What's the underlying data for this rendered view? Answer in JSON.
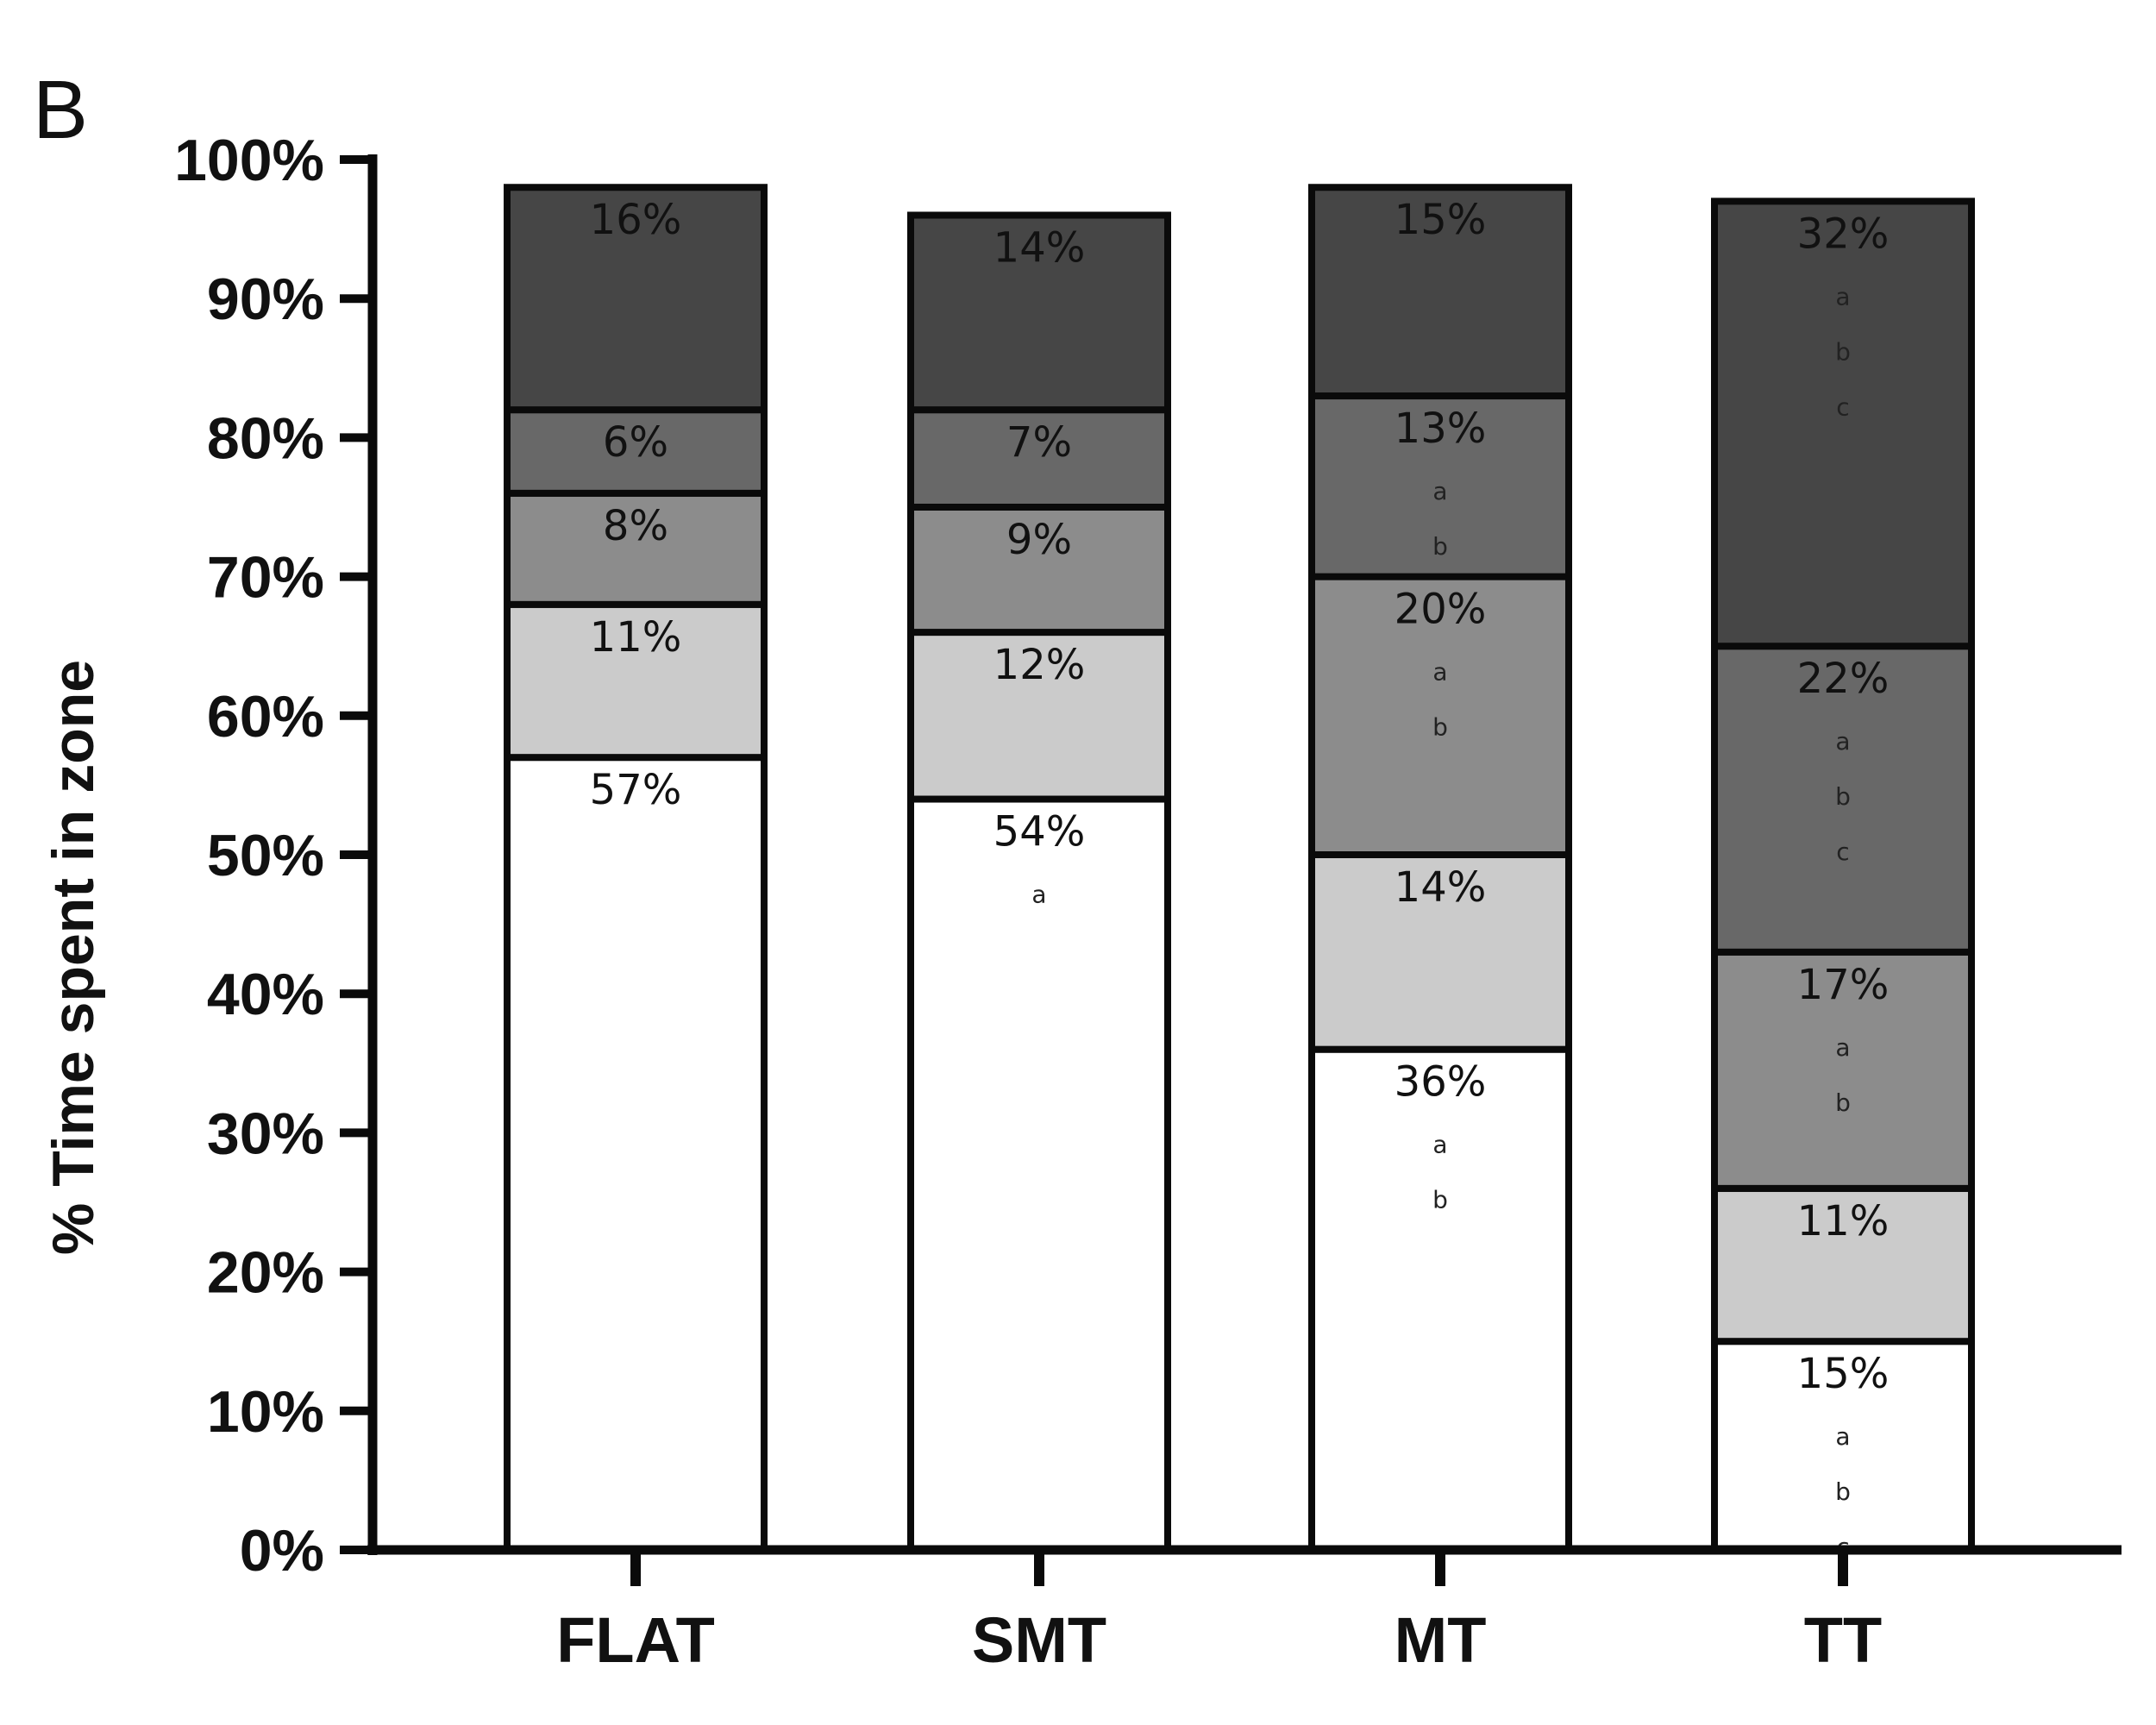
{
  "panel_label": "B",
  "chart_data": {
    "type": "bar",
    "stacked": true,
    "ylabel": "% Time spent in zone",
    "xlabel": "",
    "ylim": [
      0,
      100
    ],
    "y_ticks": [
      "0%",
      "10%",
      "20%",
      "30%",
      "40%",
      "50%",
      "60%",
      "70%",
      "80%",
      "90%",
      "100%"
    ],
    "categories": [
      "FLAT",
      "SMT",
      "MT",
      "TT"
    ],
    "series": [
      {
        "color": "#ffffff",
        "values": [
          57,
          54,
          36,
          15
        ],
        "labels": [
          "57%",
          "54%",
          "36%",
          "15%"
        ],
        "significance": [
          [],
          [
            "a"
          ],
          [
            "a",
            "b"
          ],
          [
            "a",
            "b",
            "c"
          ]
        ]
      },
      {
        "color": "#cbcbcb",
        "values": [
          11,
          12,
          14,
          11
        ],
        "labels": [
          "11%",
          "12%",
          "14%",
          "11%"
        ],
        "significance": [
          [],
          [],
          [],
          []
        ]
      },
      {
        "color": "#8c8c8c",
        "values": [
          8,
          9,
          20,
          17
        ],
        "labels": [
          "8%",
          "9%",
          "20%",
          "17%"
        ],
        "significance": [
          [],
          [],
          [
            "a",
            "b"
          ],
          [
            "a",
            "b"
          ]
        ]
      },
      {
        "color": "#686868",
        "values": [
          6,
          7,
          13,
          22
        ],
        "labels": [
          "6%",
          "7%",
          "13%",
          "22%"
        ],
        "significance": [
          [],
          [],
          [
            "a",
            "b"
          ],
          [
            "a",
            "b",
            "c"
          ]
        ]
      },
      {
        "color": "#464646",
        "values": [
          16,
          14,
          15,
          32
        ],
        "labels": [
          "16%",
          "14%",
          "15%",
          "32%"
        ],
        "significance": [
          [],
          [],
          [],
          [
            "a",
            "b",
            "c"
          ]
        ]
      }
    ],
    "grid": false,
    "legend": "none"
  }
}
